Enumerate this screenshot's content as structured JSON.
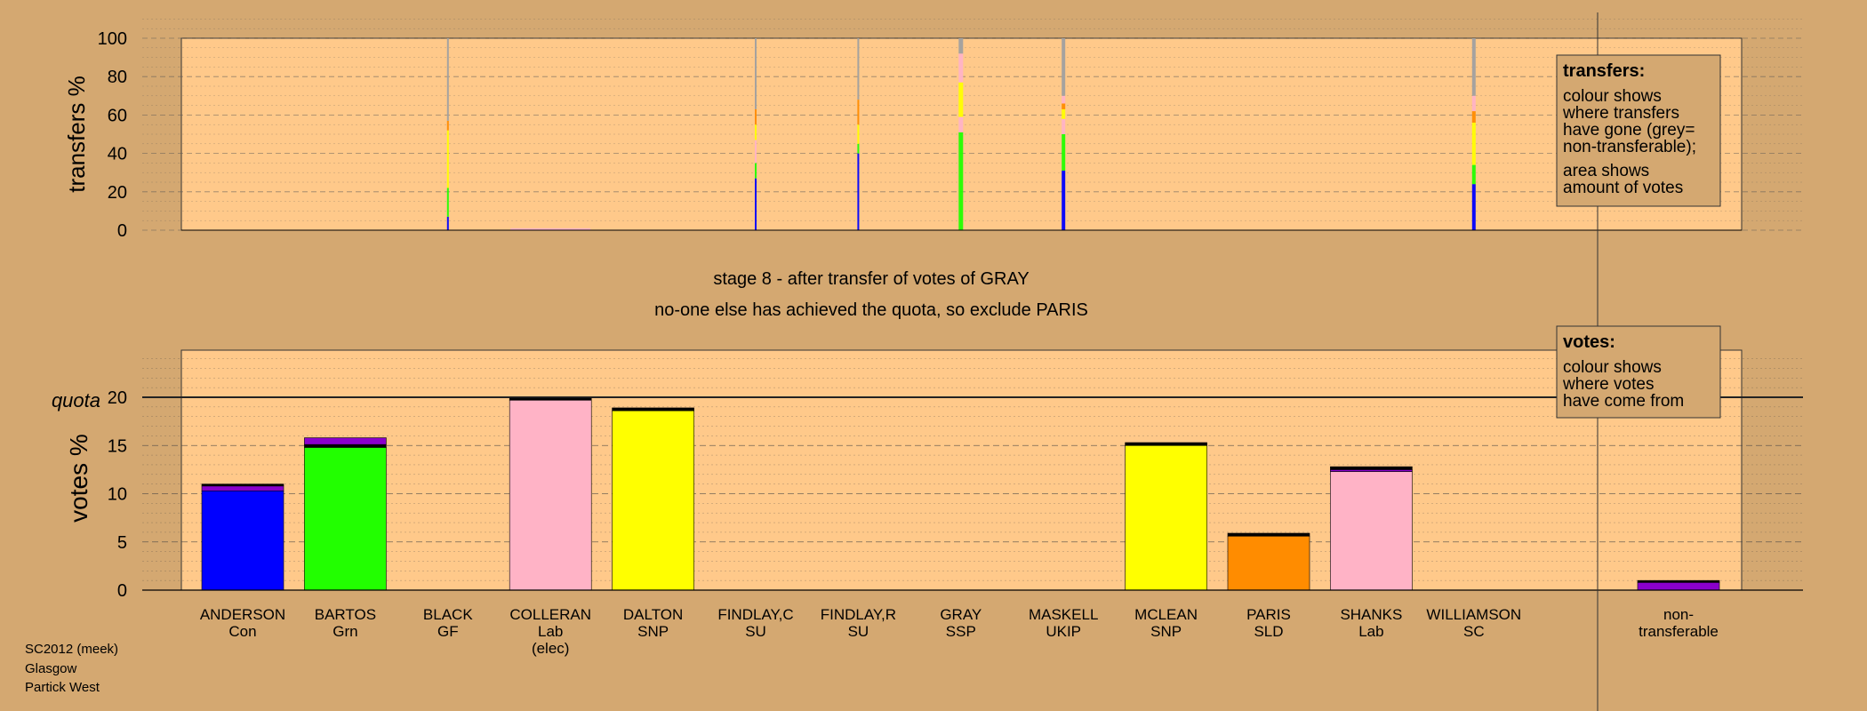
{
  "colors": {
    "background": "#d4a871",
    "panel": "#ffc98a",
    "blue": "#0000ff",
    "green": "#22ff00",
    "pink": "#ffb3c6",
    "yellow": "#ffff00",
    "orange": "#ff8c00",
    "purple": "#8a00cc",
    "grey": "#a0a0a0",
    "black": "#000000"
  },
  "source": [
    "SC2012 (meek)",
    "Glasgow",
    "Partick West"
  ],
  "stage_line1": "stage 8 - after transfer of votes of GRAY",
  "stage_line2": "no-one else has achieved the quota, so exclude PARIS",
  "transfers_box": {
    "title": "transfers:",
    "lines": [
      "colour shows",
      "where transfers",
      "have gone (grey=",
      "non-transferable);"
    ],
    "lines2": [
      "area shows",
      "amount of votes"
    ]
  },
  "votes_box": {
    "title": "votes:",
    "lines": [
      "colour shows",
      "where votes",
      "have come from"
    ]
  },
  "chart_data": [
    {
      "type": "bar",
      "title": "transfers",
      "ylabel": "transfers %",
      "ylim": [
        0,
        100
      ],
      "yticks": [
        0,
        20,
        40,
        60,
        80,
        100
      ],
      "categories": [
        "ANDERSON",
        "BARTOS",
        "BLACK",
        "COLLERAN",
        "DALTON",
        "FINDLAY,C",
        "FINDLAY,R",
        "GRAY",
        "MASKELL",
        "MCLEAN",
        "PARIS",
        "SHANKS",
        "WILLIAMSON"
      ],
      "note": "thin stacked bars for candidates whose votes have been transferred; colour = destination",
      "stacks": [
        {
          "candidate": "BLACK",
          "segments": [
            {
              "color": "blue",
              "value": 7
            },
            {
              "color": "green",
              "value": 15
            },
            {
              "color": "yellow",
              "value": 30
            },
            {
              "color": "orange",
              "value": 5
            },
            {
              "color": "grey",
              "value": 43
            }
          ]
        },
        {
          "candidate": "COLLERAN",
          "segments": [
            {
              "color": "pink",
              "value": 2
            }
          ]
        },
        {
          "candidate": "FINDLAY,C",
          "segments": [
            {
              "color": "blue",
              "value": 27
            },
            {
              "color": "green",
              "value": 8
            },
            {
              "color": "pink",
              "value": 12
            },
            {
              "color": "yellow",
              "value": 8
            },
            {
              "color": "orange",
              "value": 8
            },
            {
              "color": "grey",
              "value": 37
            }
          ]
        },
        {
          "candidate": "FINDLAY,R",
          "segments": [
            {
              "color": "blue",
              "value": 40
            },
            {
              "color": "green",
              "value": 5
            },
            {
              "color": "yellow",
              "value": 10
            },
            {
              "color": "orange",
              "value": 13
            },
            {
              "color": "grey",
              "value": 32
            }
          ]
        },
        {
          "candidate": "GRAY",
          "segments": [
            {
              "color": "green",
              "value": 51
            },
            {
              "color": "pink",
              "value": 8
            },
            {
              "color": "yellow",
              "value": 18
            },
            {
              "color": "pink",
              "value": 15
            },
            {
              "color": "grey",
              "value": 8
            }
          ]
        },
        {
          "candidate": "MASKELL",
          "segments": [
            {
              "color": "blue",
              "value": 31
            },
            {
              "color": "green",
              "value": 19
            },
            {
              "color": "pink",
              "value": 8
            },
            {
              "color": "yellow",
              "value": 5
            },
            {
              "color": "orange",
              "value": 3
            },
            {
              "color": "pink",
              "value": 4
            },
            {
              "color": "grey",
              "value": 30
            }
          ]
        },
        {
          "candidate": "WILLIAMSON",
          "segments": [
            {
              "color": "blue",
              "value": 24
            },
            {
              "color": "green",
              "value": 10
            },
            {
              "color": "yellow",
              "value": 22
            },
            {
              "color": "orange",
              "value": 6
            },
            {
              "color": "pink",
              "value": 8
            },
            {
              "color": "grey",
              "value": 30
            }
          ]
        }
      ]
    },
    {
      "type": "bar",
      "title": "votes",
      "ylabel": "votes %",
      "quota_label": "quota",
      "quota": 20,
      "ylim": [
        0,
        20
      ],
      "yticks": [
        0,
        5,
        10,
        15,
        20
      ],
      "categories": [
        {
          "name": "ANDERSON",
          "party": "Con"
        },
        {
          "name": "BARTOS",
          "party": "Grn"
        },
        {
          "name": "BLACK",
          "party": "GF"
        },
        {
          "name": "COLLERAN",
          "party": "Lab",
          "note": "(elec)"
        },
        {
          "name": "DALTON",
          "party": "SNP"
        },
        {
          "name": "FINDLAY,C",
          "party": "SU"
        },
        {
          "name": "FINDLAY,R",
          "party": "SU"
        },
        {
          "name": "GRAY",
          "party": "SSP"
        },
        {
          "name": "MASKELL",
          "party": "UKIP"
        },
        {
          "name": "MCLEAN",
          "party": "SNP"
        },
        {
          "name": "PARIS",
          "party": "SLD"
        },
        {
          "name": "SHANKS",
          "party": "Lab"
        },
        {
          "name": "WILLIAMSON",
          "party": "SC"
        }
      ],
      "nontransferable": {
        "line1": "non-",
        "line2": "transferable",
        "segments": [
          {
            "color": "purple",
            "value": 0.8
          },
          {
            "color": "black",
            "value": 0.2
          }
        ]
      },
      "series": [
        {
          "candidate": "ANDERSON",
          "segments": [
            {
              "color": "blue",
              "value": 10.3
            },
            {
              "color": "purple",
              "value": 0.5
            },
            {
              "color": "black",
              "value": 0.2
            }
          ]
        },
        {
          "candidate": "BARTOS",
          "segments": [
            {
              "color": "green",
              "value": 14.8
            },
            {
              "color": "black",
              "value": 0.3
            },
            {
              "color": "purple",
              "value": 0.7
            }
          ]
        },
        {
          "candidate": "BLACK",
          "segments": []
        },
        {
          "candidate": "COLLERAN",
          "segments": [
            {
              "color": "pink",
              "value": 19.7
            },
            {
              "color": "black",
              "value": 0.2
            }
          ]
        },
        {
          "candidate": "DALTON",
          "segments": [
            {
              "color": "yellow",
              "value": 18.6
            },
            {
              "color": "black",
              "value": 0.3
            }
          ]
        },
        {
          "candidate": "FINDLAY,C",
          "segments": []
        },
        {
          "candidate": "FINDLAY,R",
          "segments": []
        },
        {
          "candidate": "GRAY",
          "segments": []
        },
        {
          "candidate": "MASKELL",
          "segments": []
        },
        {
          "candidate": "MCLEAN",
          "segments": [
            {
              "color": "yellow",
              "value": 15.0
            },
            {
              "color": "black",
              "value": 0.3
            }
          ]
        },
        {
          "candidate": "PARIS",
          "segments": [
            {
              "color": "orange",
              "value": 5.6
            },
            {
              "color": "black",
              "value": 0.3
            }
          ]
        },
        {
          "candidate": "SHANKS",
          "segments": [
            {
              "color": "pink",
              "value": 12.3
            },
            {
              "color": "purple",
              "value": 0.2
            },
            {
              "color": "black",
              "value": 0.3
            }
          ]
        },
        {
          "candidate": "WILLIAMSON",
          "segments": []
        }
      ]
    }
  ]
}
